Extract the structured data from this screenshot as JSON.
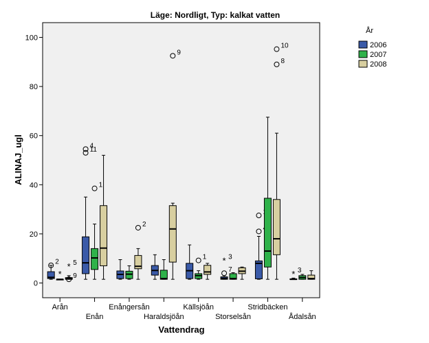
{
  "chart_data": {
    "type": "boxplot",
    "title": "Läge: Nordligt, Typ: kalkat vatten",
    "xlabel": "Vattendrag",
    "ylabel": "ALINAJ_ugl",
    "ylim": [
      -6,
      106
    ],
    "yticks": [
      0,
      20,
      40,
      60,
      80,
      100
    ],
    "grid": false,
    "legend": {
      "title": "År",
      "placement": "right"
    },
    "categories": [
      "Arån",
      "Enån",
      "Enångersån",
      "Haraldsjöån",
      "Källsjöån",
      "Storselsån",
      "Stridbäcken",
      "Ådalsån"
    ],
    "series": [
      {
        "name": "2006",
        "color": "#3a5aa8",
        "boxes": [
          {
            "category": "Arån",
            "min": 1.5,
            "q1": 1.8,
            "median": 2.3,
            "q3": 4.6,
            "max": 7.2,
            "outliers": [
              {
                "value": 7.2,
                "marker": "circle",
                "label": "2"
              }
            ]
          },
          {
            "category": "Enån",
            "min": 1.5,
            "q1": 3.8,
            "median": 8.2,
            "q3": 18.8,
            "max": 35.0,
            "outliers": [
              {
                "value": 54.5,
                "marker": "circle",
                "label": "4"
              },
              {
                "value": 53.0,
                "marker": "circle",
                "label": "11"
              }
            ]
          },
          {
            "category": "Enångersån",
            "min": 1.5,
            "q1": 1.8,
            "median": 3.5,
            "q3": 4.9,
            "max": 9.5,
            "outliers": []
          },
          {
            "category": "Haraldsjöån",
            "min": 1.5,
            "q1": 3.2,
            "median": 5.1,
            "q3": 7.1,
            "max": 11.5,
            "outliers": []
          },
          {
            "category": "Källsjöån",
            "min": 1.5,
            "q1": 1.8,
            "median": 5.0,
            "q3": 8.0,
            "max": 15.5,
            "outliers": []
          },
          {
            "category": "Storselsån",
            "min": 1.5,
            "q1": 1.5,
            "median": 1.9,
            "q3": 2.5,
            "max": 3.0,
            "outliers": [
              {
                "value": 9.2,
                "marker": "star",
                "label": "3"
              },
              {
                "value": 4.0,
                "marker": "circle",
                "label": "7"
              }
            ]
          },
          {
            "category": "Stridbäcken",
            "min": 1.5,
            "q1": 1.7,
            "median": 8.0,
            "q3": 9.0,
            "max": 19.0,
            "outliers": [
              {
                "value": 27.5,
                "marker": "circle",
                "label": "11"
              },
              {
                "value": 21.0,
                "marker": "circle",
                "label": "4"
              }
            ]
          },
          {
            "category": "Ådalsån",
            "min": 1.5,
            "q1": 1.5,
            "median": 1.5,
            "q3": 1.7,
            "max": 2.0,
            "outliers": [
              {
                "value": 3.8,
                "marker": "star",
                "label": "3"
              }
            ]
          }
        ]
      },
      {
        "name": "2007",
        "color": "#2fb24a",
        "boxes": [
          {
            "category": "Arån",
            "min": 1.5,
            "q1": 1.5,
            "median": 1.5,
            "q3": 1.5,
            "max": 1.5,
            "outliers": [
              {
                "value": 3.8,
                "marker": "star",
                "label": ""
              }
            ]
          },
          {
            "category": "Enån",
            "min": 1.5,
            "q1": 5.5,
            "median": 10.2,
            "q3": 14.0,
            "max": 24.0,
            "outliers": [
              {
                "value": 38.5,
                "marker": "circle",
                "label": "1"
              }
            ]
          },
          {
            "category": "Enångersån",
            "min": 1.5,
            "q1": 1.8,
            "median": 3.6,
            "q3": 4.8,
            "max": 7.0,
            "outliers": []
          },
          {
            "category": "Haraldsjöån",
            "min": 1.5,
            "q1": 1.5,
            "median": 1.8,
            "q3": 5.2,
            "max": 9.5,
            "outliers": []
          },
          {
            "category": "Källsjöån",
            "min": 1.5,
            "q1": 1.8,
            "median": 3.0,
            "q3": 3.8,
            "max": 5.0,
            "outliers": [
              {
                "value": 9.2,
                "marker": "circle",
                "label": "1"
              }
            ]
          },
          {
            "category": "Storselsån",
            "min": 1.5,
            "q1": 1.5,
            "median": 1.8,
            "q3": 3.8,
            "max": 4.2,
            "outliers": []
          },
          {
            "category": "Stridbäcken",
            "min": 1.5,
            "q1": 6.5,
            "median": 13.0,
            "q3": 34.5,
            "max": 67.5,
            "outliers": []
          },
          {
            "category": "Ådalsån",
            "min": 1.5,
            "q1": 1.5,
            "median": 2.2,
            "q3": 3.0,
            "max": 3.5,
            "outliers": []
          }
        ]
      },
      {
        "name": "2008",
        "color": "#d8cfa0",
        "boxes": [
          {
            "category": "Arån",
            "min": 1.5,
            "q1": 1.5,
            "median": 1.8,
            "q3": 2.2,
            "max": 3.0,
            "outliers": [
              {
                "value": 6.8,
                "marker": "star",
                "label": "5"
              },
              {
                "value": 1.5,
                "marker": "circle",
                "label": "9"
              }
            ]
          },
          {
            "category": "Enån",
            "min": 1.5,
            "q1": 7.0,
            "median": 14.2,
            "q3": 31.5,
            "max": 52.0,
            "outliers": []
          },
          {
            "category": "Enångersån",
            "min": 1.5,
            "q1": 5.8,
            "median": 6.8,
            "q3": 11.2,
            "max": 14.0,
            "outliers": [
              {
                "value": 22.5,
                "marker": "circle",
                "label": "2"
              }
            ]
          },
          {
            "category": "Haraldsjöån",
            "min": 1.5,
            "q1": 8.5,
            "median": 22.0,
            "q3": 31.5,
            "max": 32.5,
            "outliers": [
              {
                "value": 92.5,
                "marker": "circle",
                "label": "9"
              }
            ]
          },
          {
            "category": "Källsjöån",
            "min": 1.5,
            "q1": 3.5,
            "median": 4.5,
            "q3": 7.2,
            "max": 8.0,
            "outliers": []
          },
          {
            "category": "Storselsån",
            "min": 1.5,
            "q1": 3.8,
            "median": 4.8,
            "q3": 6.2,
            "max": 6.5,
            "outliers": []
          },
          {
            "category": "Stridbäcken",
            "min": 1.5,
            "q1": 11.5,
            "median": 18.0,
            "q3": 34.0,
            "max": 61.0,
            "outliers": [
              {
                "value": 95.2,
                "marker": "circle",
                "label": "10"
              },
              {
                "value": 89.0,
                "marker": "circle",
                "label": "8"
              }
            ]
          },
          {
            "category": "Ådalsån",
            "min": 1.5,
            "q1": 1.5,
            "median": 1.8,
            "q3": 3.2,
            "max": 5.0,
            "outliers": []
          }
        ]
      }
    ]
  }
}
